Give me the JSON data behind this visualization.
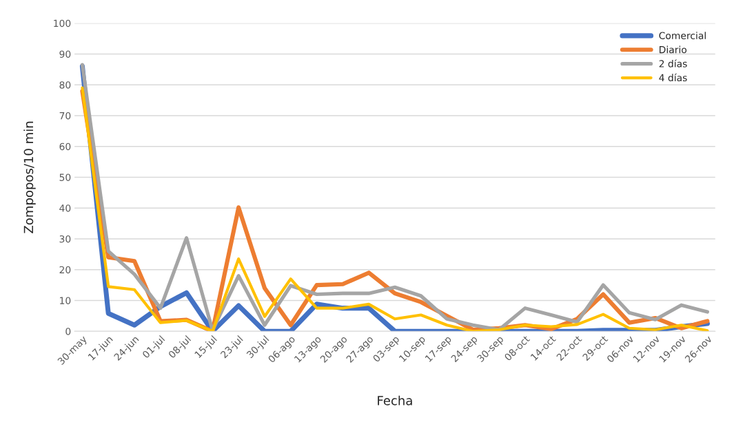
{
  "chart_data": {
    "type": "line",
    "xlabel": "Fecha",
    "ylabel": "Zompopos/10 min",
    "categories": [
      "30-may",
      "17-jun",
      "24-jun",
      "01-jul",
      "08-jul",
      "15-jul",
      "23-jul",
      "30-jul",
      "06-ago",
      "13-ago",
      "20-ago",
      "27-ago",
      "03-sep",
      "10-sep",
      "17-sep",
      "24-sep",
      "30-sep",
      "08-oct",
      "14-oct",
      "22-oct",
      "29-oct",
      "06-nov",
      "12-nov",
      "19-nov",
      "26-nov"
    ],
    "series": [
      {
        "name": "Comercial",
        "color": "#4472c4",
        "values": [
          86,
          5.8,
          2,
          8,
          12.5,
          0,
          8.3,
          0,
          0,
          8.8,
          7.5,
          7.5,
          0,
          0,
          0,
          0,
          0,
          0,
          0,
          0,
          0.3,
          0.3,
          0.3,
          1.5,
          2.5
        ]
      },
      {
        "name": "Diario",
        "color": "#ed7d31",
        "values": [
          78,
          24,
          22.8,
          3.3,
          3.7,
          0,
          40.2,
          14,
          2,
          15,
          15.3,
          19,
          12.3,
          9.5,
          5,
          0.5,
          1,
          2,
          0.7,
          4,
          12,
          2.8,
          4.3,
          1,
          3.3
        ]
      },
      {
        "name": "2 días",
        "color": "#a5a5a5",
        "values": [
          86.5,
          26,
          18.5,
          7.5,
          30.3,
          0.3,
          18,
          2,
          14.8,
          12,
          12.3,
          12.3,
          14.3,
          11.5,
          4,
          2,
          0.5,
          7.5,
          5.3,
          3,
          15,
          6,
          3.8,
          8.5,
          6.3
        ]
      },
      {
        "name": "4 días",
        "color": "#ffc000",
        "values": [
          79,
          14.5,
          13.5,
          2.8,
          3.5,
          0,
          23.5,
          4.8,
          17,
          7.5,
          7.5,
          8.8,
          4,
          5.3,
          2,
          0,
          0.5,
          2,
          1.5,
          2.2,
          5.5,
          1,
          0.5,
          2,
          0.2
        ]
      }
    ],
    "ylim": [
      0,
      100
    ],
    "yticks": [
      0,
      10,
      20,
      30,
      40,
      50,
      60,
      70,
      80,
      90,
      100
    ],
    "grid": "y",
    "legend": "top right",
    "marker": "none",
    "line_style": "solid"
  }
}
